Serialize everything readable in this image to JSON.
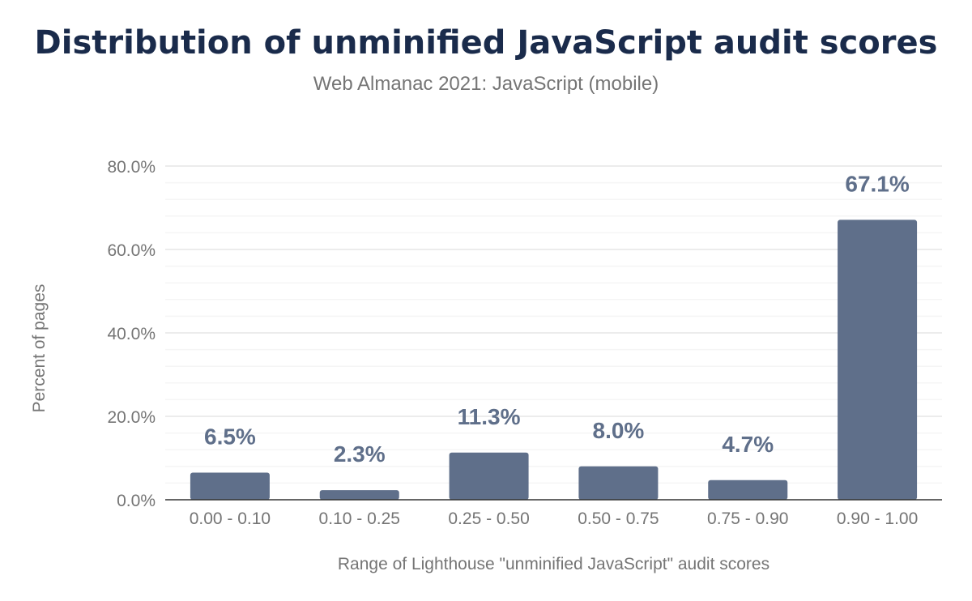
{
  "title": "Distribution of unminified JavaScript audit scores",
  "subtitle": "Web Almanac 2021: JavaScript (mobile)",
  "colors": {
    "bar": "#5f6f8a",
    "label": "#5f6f8a",
    "title": "#1a2b4b",
    "axis_text": "#757575"
  },
  "chart_data": {
    "type": "bar",
    "title": "Distribution of unminified JavaScript audit scores",
    "subtitle": "Web Almanac 2021: JavaScript (mobile)",
    "xlabel": "Range of Lighthouse \"unminified JavaScript\" audit scores",
    "ylabel": "Percent of pages",
    "categories": [
      "0.00 - 0.10",
      "0.10 - 0.25",
      "0.25 - 0.50",
      "0.50 - 0.75",
      "0.75 - 0.90",
      "0.90 - 1.00"
    ],
    "values": [
      6.5,
      2.3,
      11.3,
      8.0,
      4.7,
      67.1
    ],
    "data_labels": [
      "6.5%",
      "2.3%",
      "11.3%",
      "8.0%",
      "4.7%",
      "67.1%"
    ],
    "yticks": [
      "0.0%",
      "20.0%",
      "40.0%",
      "60.0%",
      "80.0%"
    ],
    "ytick_values": [
      0,
      20,
      40,
      60,
      80
    ],
    "ylim": [
      0,
      80
    ],
    "grid": true,
    "legend": "none"
  }
}
